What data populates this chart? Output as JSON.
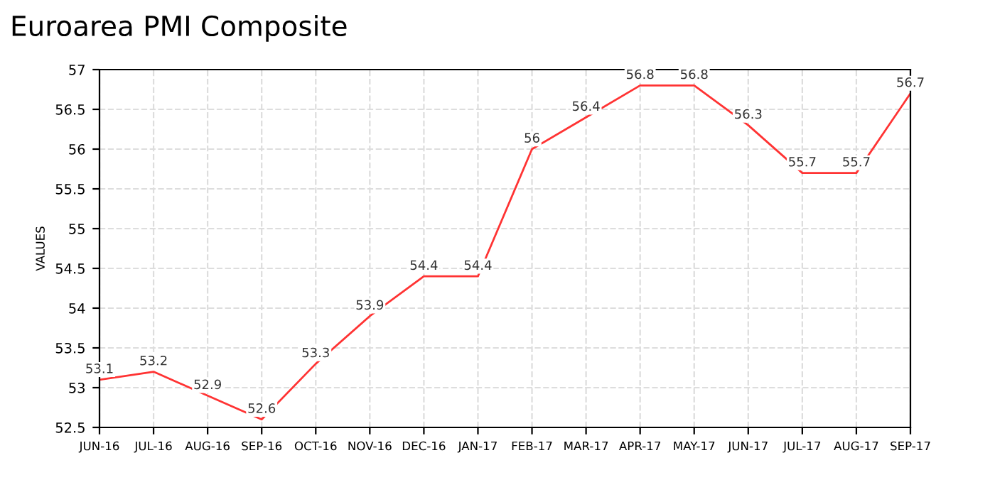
{
  "chart_data": {
    "type": "line",
    "title": "Euroarea PMI Composite",
    "ylabel": "VALUES",
    "categories": [
      "JUN-16",
      "JUL-16",
      "AUG-16",
      "SEP-16",
      "OCT-16",
      "NOV-16",
      "DEC-16",
      "JAN-17",
      "FEB-17",
      "MAR-17",
      "APR-17",
      "MAY-17",
      "JUN-17",
      "JUL-17",
      "AUG-17",
      "SEP-17"
    ],
    "series": [
      {
        "color": "#ff3333",
        "values": [
          53.1,
          53.2,
          52.9,
          52.6,
          53.3,
          53.9,
          54.4,
          54.4,
          56,
          56.4,
          56.8,
          56.8,
          56.3,
          55.7,
          55.7,
          56.7
        ]
      }
    ],
    "ylim": [
      52.5,
      57
    ],
    "yticks": [
      52.5,
      53,
      53.5,
      54,
      54.5,
      55,
      55.5,
      56,
      56.5,
      57
    ],
    "grid": true,
    "data_labels": true,
    "marker": "none",
    "line_style": "solid"
  }
}
